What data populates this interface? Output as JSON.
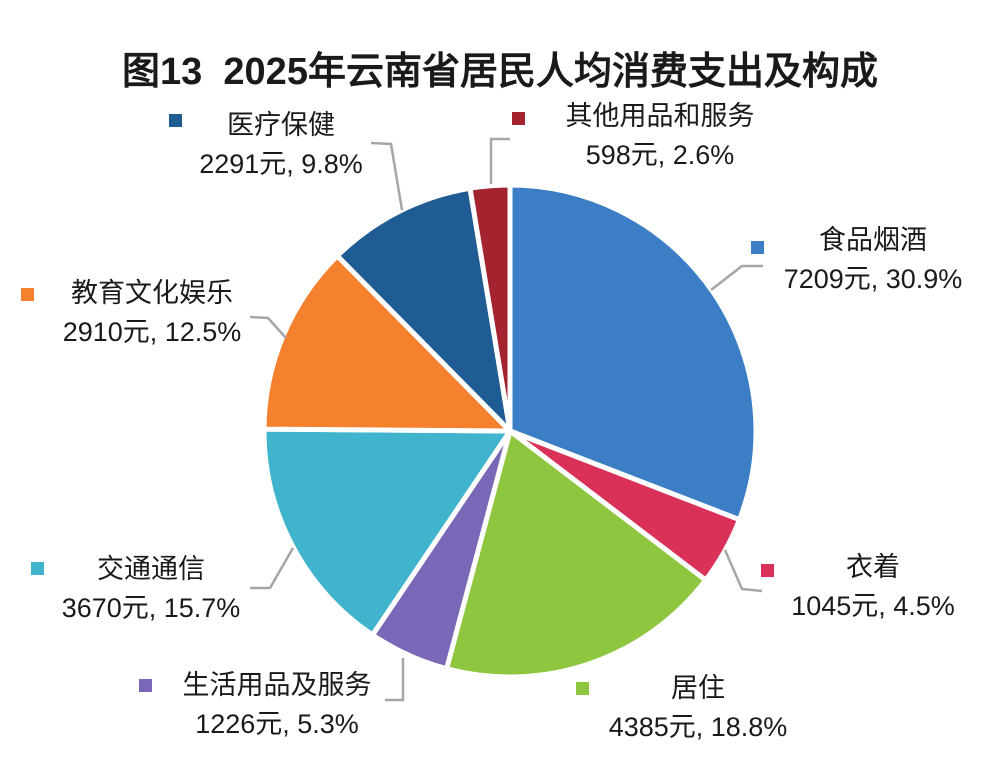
{
  "chart_data": {
    "type": "pie",
    "title": "图13  2025年云南省居民人均消费支出及构成",
    "unit": "元",
    "start_angle_deg": 0,
    "direction": "clockwise",
    "legend_position": "around",
    "label_format": "name + value元, percent%",
    "slices": [
      {
        "label": "食品烟酒",
        "value": 7209,
        "pct": 30.9,
        "amount_line": "7209元, 30.9%",
        "color": "#3C7EC5"
      },
      {
        "label": "衣着",
        "value": 1045,
        "pct": 4.5,
        "amount_line": "1045元, 4.5%",
        "color": "#D93158"
      },
      {
        "label": "居住",
        "value": 4385,
        "pct": 18.8,
        "amount_line": "4385元, 18.8%",
        "color": "#8EC63F"
      },
      {
        "label": "生活用品及服务",
        "value": 1226,
        "pct": 5.3,
        "amount_line": "1226元, 5.3%",
        "color": "#7A67B7"
      },
      {
        "label": "交通通信",
        "value": 3670,
        "pct": 15.7,
        "amount_line": "3670元, 15.7%",
        "color": "#3FB4CC"
      },
      {
        "label": "教育文化娱乐",
        "value": 2910,
        "pct": 12.5,
        "amount_line": "2910元, 12.5%",
        "color": "#F5802E"
      },
      {
        "label": "医疗保健",
        "value": 2291,
        "pct": 9.8,
        "amount_line": "2291元, 9.8%",
        "color": "#205C94"
      },
      {
        "label": "其他用品和服务",
        "value": 598,
        "pct": 2.6,
        "amount_line": "598元, 2.6%",
        "color": "#A3242F"
      }
    ]
  }
}
